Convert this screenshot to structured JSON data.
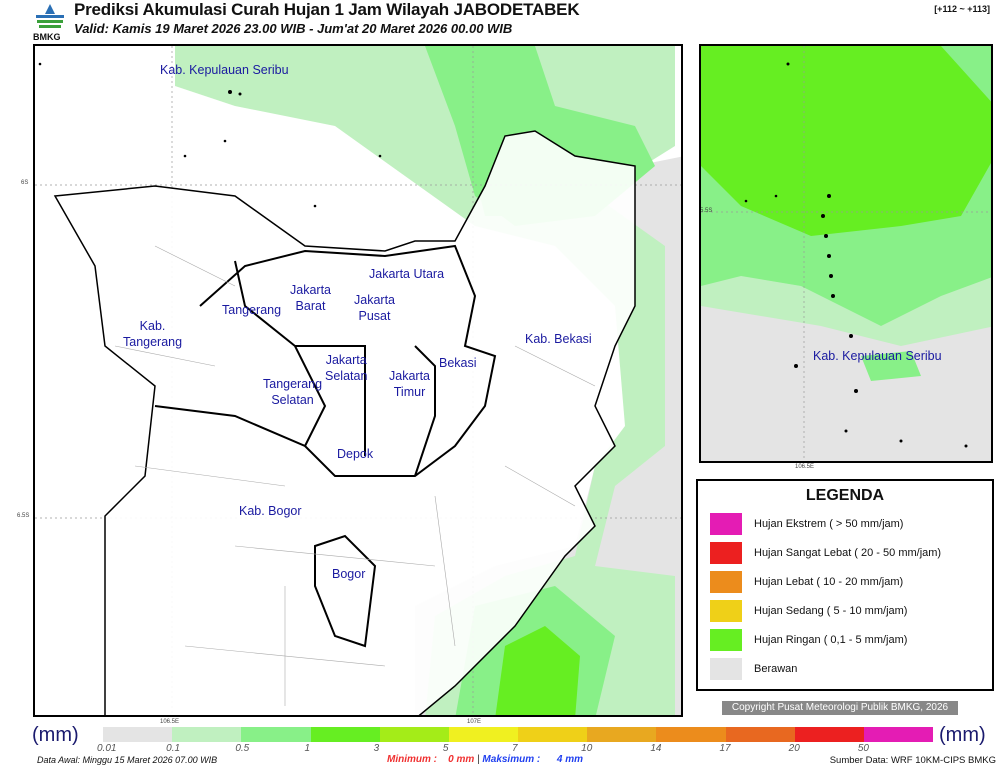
{
  "header": {
    "logo_text": "BMKG",
    "title": "Prediksi Akumulasi Curah Hujan 1 Jam Wilayah JABODETABEK",
    "valid": "Valid: Kamis 19 Maret 2026 23.00 WIB - Jum'at 20 Maret 2026 00.00 WIB",
    "code": "[+112 ~ +113]"
  },
  "map": {
    "labels": [
      "Kab. Kepulauan Seribu",
      "Jakarta Utara",
      "Jakarta\nBarat",
      "Jakarta\nPusat",
      "Tangerang",
      "Kab.\nTangerang",
      "Kab. Bekasi",
      "Jakarta\nSelatan",
      "Jakarta\nTimur",
      "Bekasi",
      "Tangerang\nSelatan",
      "Depok",
      "Kab. Bogor",
      "Bogor"
    ],
    "lat_ticks": [
      "6S",
      "6.5S"
    ],
    "lon_ticks": [
      "106.5E",
      "107E"
    ]
  },
  "inset": {
    "label": "Kab. Kepulauan Seribu",
    "lat_tick": "5.5S",
    "lon_tick": "106.5E"
  },
  "legend": {
    "title": "LEGENDA",
    "items": [
      {
        "label": "Hujan Ekstrem ( > 50 mm/jam)",
        "color": "#e41cb4"
      },
      {
        "label": "Hujan Sangat Lebat ( 20 - 50 mm/jam)",
        "color": "#ec2020"
      },
      {
        "label": "Hujan Lebat ( 10 - 20 mm/jam)",
        "color": "#ec8c1c"
      },
      {
        "label": "Hujan Sedang ( 5 - 10 mm/jam)",
        "color": "#efd018"
      },
      {
        "label": "Hujan Ringan ( 0,1 - 5 mm/jam)",
        "color": "#66ee22"
      },
      {
        "label": "Berawan",
        "color": "#e4e4e4"
      }
    ]
  },
  "copyright": "Copyright Pusat Meteorologi Publik BMKG, 2026",
  "colorbar": {
    "unit": "(mm)",
    "colors": [
      "#e4e4e4",
      "#c0f0c0",
      "#88f088",
      "#66ee22",
      "#a4ec18",
      "#f0f020",
      "#efd018",
      "#e8a820",
      "#ec8c1c",
      "#e86820",
      "#ec2020",
      "#e41cb4"
    ],
    "ticks": [
      "0.01",
      "0.1",
      "0.5",
      "1",
      "3",
      "5",
      "7",
      "10",
      "14",
      "17",
      "20",
      "50"
    ]
  },
  "footer": {
    "data_awal": "Data Awal: Minggu 15 Maret 2026 07.00 WIB",
    "min_label": "Minimum :",
    "min_value": "0 mm",
    "sep": "|",
    "max_label": "Maksimum :",
    "max_value": "4 mm",
    "source": "Sumber Data: WRF 10KM-CIPS BMKG"
  }
}
